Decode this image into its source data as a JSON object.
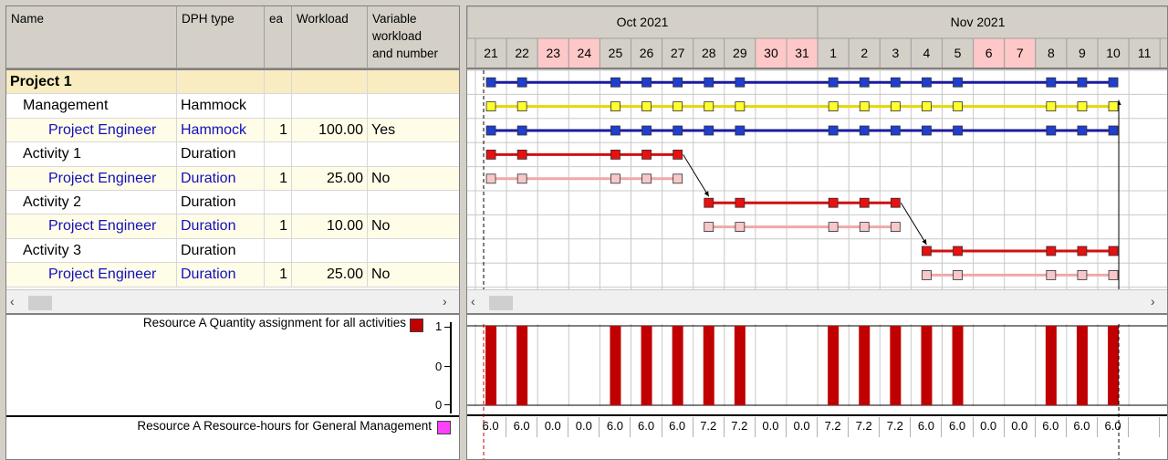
{
  "columns": {
    "name": "Name",
    "dph_type": "DPH type",
    "ea": "ea",
    "workload": "Workload",
    "variable_l1": "Variable",
    "variable_l2": "workload",
    "variable_l3": "and number"
  },
  "rows": [
    {
      "name": "Project 1",
      "type": "",
      "ea": "",
      "workload": "",
      "variable": ""
    },
    {
      "name": "Management",
      "type": "Hammock",
      "ea": "",
      "workload": "",
      "variable": ""
    },
    {
      "name": "Project Engineer",
      "type": "Hammock",
      "ea": "1",
      "workload": "100.00",
      "variable": "Yes"
    },
    {
      "name": "Activity 1",
      "type": "Duration",
      "ea": "",
      "workload": "",
      "variable": ""
    },
    {
      "name": "Project Engineer",
      "type": "Duration",
      "ea": "1",
      "workload": "25.00",
      "variable": "No"
    },
    {
      "name": "Activity 2",
      "type": "Duration",
      "ea": "",
      "workload": "",
      "variable": ""
    },
    {
      "name": "Project Engineer",
      "type": "Duration",
      "ea": "1",
      "workload": "10.00",
      "variable": "No"
    },
    {
      "name": "Activity 3",
      "type": "Duration",
      "ea": "",
      "workload": "",
      "variable": ""
    },
    {
      "name": "Project Engineer",
      "type": "Duration",
      "ea": "1",
      "workload": "25.00",
      "variable": "No"
    }
  ],
  "timeline": {
    "months": [
      "Oct 2021",
      "Nov 2021"
    ],
    "days": [
      "21",
      "22",
      "23",
      "24",
      "25",
      "26",
      "27",
      "28",
      "29",
      "30",
      "31",
      "1",
      "2",
      "3",
      "4",
      "5",
      "6",
      "7",
      "8",
      "9",
      "10",
      "11"
    ],
    "weekend_flags": [
      false,
      false,
      true,
      true,
      false,
      false,
      false,
      false,
      false,
      true,
      true,
      false,
      false,
      false,
      false,
      false,
      true,
      true,
      false,
      false,
      false,
      false
    ]
  },
  "gantt_rows": [
    {
      "style": "summary",
      "start": 0,
      "end": 20,
      "markers": [
        0,
        1,
        4,
        5,
        6,
        7,
        8,
        11,
        12,
        13,
        14,
        15,
        18,
        19,
        20
      ]
    },
    {
      "style": "hammock",
      "start": 0,
      "end": 20,
      "markers": [
        0,
        1,
        4,
        5,
        6,
        7,
        8,
        11,
        12,
        13,
        14,
        15,
        18,
        19,
        20
      ]
    },
    {
      "style": "summary",
      "start": 0,
      "end": 20,
      "markers": [
        0,
        1,
        4,
        5,
        6,
        7,
        8,
        11,
        12,
        13,
        14,
        15,
        18,
        19,
        20
      ]
    },
    {
      "style": "activity",
      "start": 0,
      "end": 6,
      "markers": [
        0,
        1,
        4,
        5,
        6
      ]
    },
    {
      "style": "assignment",
      "start": 0,
      "end": 6,
      "markers": [
        0,
        1,
        4,
        5,
        6
      ]
    },
    {
      "style": "activity",
      "start": 7,
      "end": 13,
      "markers": [
        7,
        8,
        11,
        12,
        13
      ]
    },
    {
      "style": "assignment",
      "start": 7,
      "end": 13,
      "markers": [
        7,
        8,
        11,
        12,
        13
      ]
    },
    {
      "style": "activity",
      "start": 14,
      "end": 20,
      "markers": [
        14,
        15,
        18,
        19,
        20
      ]
    },
    {
      "style": "assignment",
      "start": 14,
      "end": 20,
      "markers": [
        14,
        15,
        18,
        19,
        20
      ]
    }
  ],
  "colors": {
    "summary": "#1a1aa0",
    "summary_marker": "#1e3fd0",
    "hammock": "#e6d800",
    "hammock_marker": "#ffff30",
    "activity": "#d01010",
    "activity_marker": "#e81010",
    "assignment": "#f0a8a8",
    "assignment_marker": "#f8c8c8",
    "weekend": "#ffc8c8",
    "project_row": "#f8ecc0",
    "alt_row": "#fffce8",
    "histogram_bar": "#c00000",
    "legend_magenta": "#ff40ff"
  },
  "histogram": {
    "label": "Resource A Quantity assignment for all activities",
    "y_ticks": [
      "1",
      "0",
      "0"
    ],
    "values": [
      1,
      1,
      0,
      0,
      1,
      1,
      1,
      1,
      1,
      0,
      0,
      1,
      1,
      1,
      1,
      1,
      0,
      0,
      1,
      1,
      1,
      0
    ]
  },
  "resource_hours": {
    "label": "Resource A Resource-hours for General Management",
    "values": [
      "6.0",
      "6.0",
      "0.0",
      "0.0",
      "6.0",
      "6.0",
      "6.0",
      "7.2",
      "7.2",
      "0.0",
      "0.0",
      "7.2",
      "7.2",
      "7.2",
      "6.0",
      "6.0",
      "0.0",
      "0.0",
      "6.0",
      "6.0",
      "6.0",
      ""
    ]
  },
  "icons": {
    "scroll_left": "‹",
    "scroll_right": "›"
  }
}
